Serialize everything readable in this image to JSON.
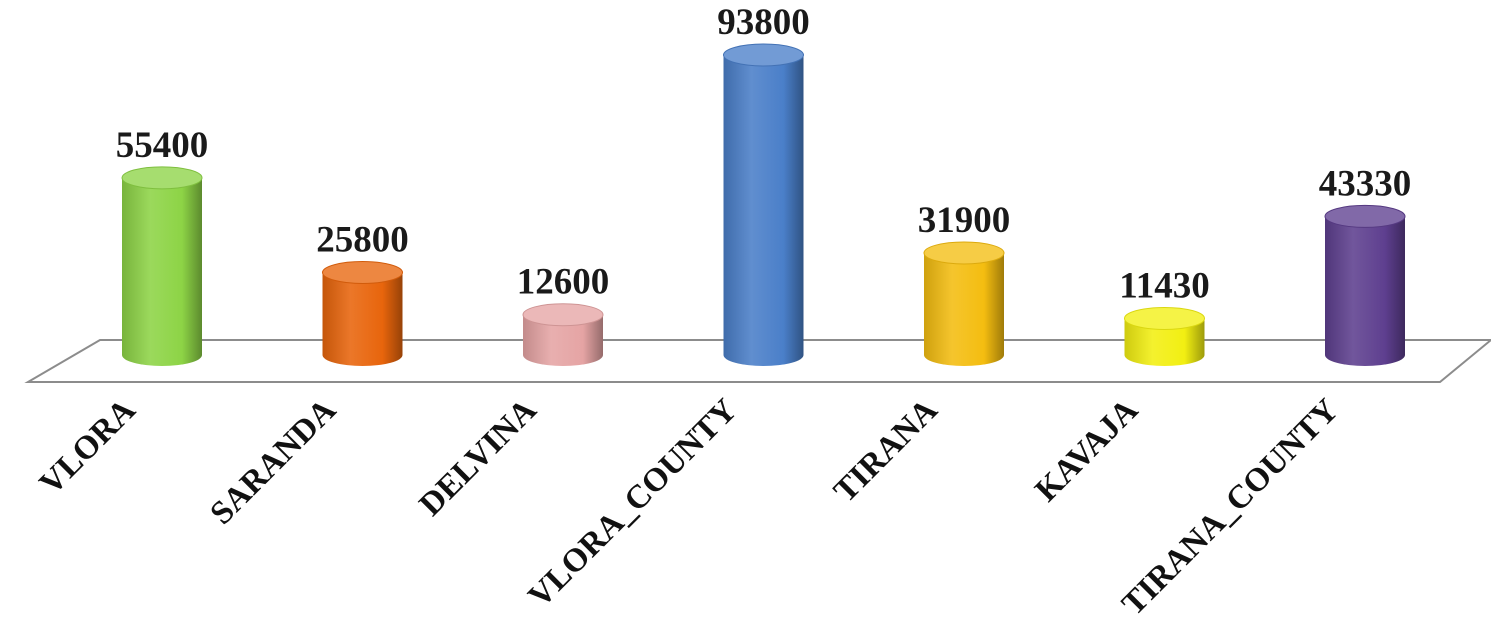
{
  "chart_data": {
    "type": "bar",
    "categories": [
      "VLORA",
      "SARANDA",
      "DELVINA",
      "VLORA_COUNTY",
      "TIRANA",
      "KAVAJA",
      "TIRANA_COUNTY"
    ],
    "values": [
      55400,
      25800,
      12600,
      93800,
      31900,
      11430,
      43330
    ],
    "labels": [
      "55400",
      "25800",
      "12600",
      "93800",
      "31900",
      "11430",
      "43330"
    ],
    "colors": [
      "#8dd446",
      "#e8650c",
      "#e5a4a4",
      "#4a7fc9",
      "#f4bd10",
      "#f2ef12",
      "#5e3f8f"
    ],
    "bar_shape": "cylinder",
    "ylim": [
      0,
      100000
    ],
    "grid": false,
    "legend": "none",
    "title": "",
    "xlabel": "",
    "ylabel": ""
  }
}
